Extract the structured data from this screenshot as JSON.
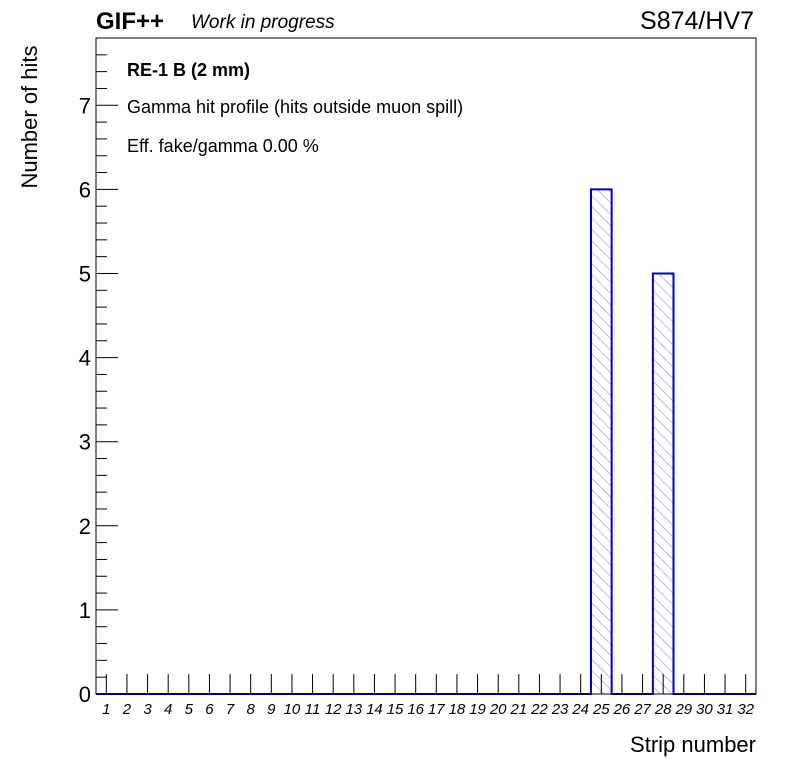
{
  "header": {
    "brand": "GIF++",
    "status": "Work in progress",
    "run_label": "S874/HV7"
  },
  "annotations": [
    "RE-1 B (2 mm)",
    "Gamma hit profile (hits outside muon spill)",
    "Eff. fake/gamma 0.00 %"
  ],
  "colors": {
    "bar_line": "#0000cc",
    "hatch": "#8080d8"
  },
  "chart_data": {
    "type": "bar",
    "categories": [
      "1",
      "2",
      "3",
      "4",
      "5",
      "6",
      "7",
      "8",
      "9",
      "10",
      "11",
      "12",
      "13",
      "14",
      "15",
      "16",
      "17",
      "18",
      "19",
      "20",
      "21",
      "22",
      "23",
      "24",
      "25",
      "26",
      "27",
      "28",
      "29",
      "30",
      "31",
      "32"
    ],
    "values": [
      0,
      0,
      0,
      0,
      0,
      0,
      0,
      0,
      0,
      0,
      0,
      0,
      0,
      0,
      0,
      0,
      0,
      0,
      0,
      0,
      0,
      0,
      0,
      0,
      6,
      0,
      0,
      5,
      0,
      0,
      0,
      0
    ],
    "xlabel": "Strip number",
    "ylabel": "Number of hits",
    "ylim": [
      0,
      7.8
    ],
    "yticks": [
      "0",
      "1",
      "2",
      "3",
      "4",
      "5",
      "6",
      "7"
    ],
    "fill": "hatched",
    "grid": false,
    "legend": "none"
  }
}
